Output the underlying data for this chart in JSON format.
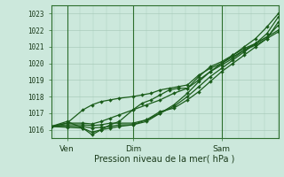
{
  "xlabel": "Pression niveau de la mer( hPa )",
  "bg_color": "#cce8dc",
  "line_color": "#1a5c1a",
  "grid_color": "#aaccbb",
  "ylim": [
    1015.5,
    1023.5
  ],
  "yticks": [
    1016,
    1017,
    1018,
    1019,
    1020,
    1021,
    1022,
    1023
  ],
  "xlim": [
    0,
    1.0
  ],
  "xtick_positions": [
    0.07,
    0.36,
    0.75
  ],
  "xtick_labels": [
    "Ven",
    "Dim",
    "Sam"
  ],
  "vline_positions": [
    0.07,
    0.36,
    0.75
  ],
  "series": [
    [
      0.0,
      1016.2,
      0.07,
      1016.15,
      0.14,
      1016.1,
      0.18,
      1015.85,
      0.22,
      1016.0,
      0.26,
      1016.1,
      0.3,
      1016.2,
      0.36,
      1016.3,
      0.42,
      1016.6,
      0.48,
      1017.0,
      0.54,
      1017.5,
      0.6,
      1018.2,
      0.65,
      1018.9,
      0.7,
      1019.5,
      0.75,
      1020.0,
      0.8,
      1020.5,
      0.85,
      1021.0,
      0.9,
      1021.5,
      0.95,
      1022.2,
      1.0,
      1023.0
    ],
    [
      0.0,
      1016.2,
      0.07,
      1016.2,
      0.14,
      1016.2,
      0.18,
      1016.1,
      0.22,
      1016.15,
      0.26,
      1016.2,
      0.3,
      1016.3,
      0.36,
      1016.3,
      0.42,
      1016.5,
      0.48,
      1017.0,
      0.54,
      1017.4,
      0.6,
      1018.0,
      0.65,
      1018.6,
      0.7,
      1019.2,
      0.75,
      1019.7,
      0.8,
      1020.2,
      0.85,
      1020.7,
      0.9,
      1021.2,
      0.95,
      1021.8,
      1.0,
      1022.8
    ],
    [
      0.0,
      1016.2,
      0.07,
      1016.3,
      0.14,
      1016.3,
      0.18,
      1016.25,
      0.22,
      1016.3,
      0.26,
      1016.4,
      0.3,
      1016.4,
      0.36,
      1016.4,
      0.42,
      1016.6,
      0.48,
      1017.1,
      0.54,
      1017.3,
      0.6,
      1017.8,
      0.65,
      1018.3,
      0.7,
      1018.9,
      0.75,
      1019.5,
      0.8,
      1020.0,
      0.85,
      1020.5,
      0.9,
      1021.0,
      0.95,
      1021.5,
      1.0,
      1022.5
    ],
    [
      0.0,
      1016.2,
      0.07,
      1016.4,
      0.14,
      1016.4,
      0.18,
      1016.35,
      0.22,
      1016.5,
      0.26,
      1016.7,
      0.3,
      1016.9,
      0.36,
      1017.2,
      0.42,
      1017.5,
      0.48,
      1017.8,
      0.54,
      1018.2,
      0.6,
      1018.5,
      0.65,
      1019.0,
      0.7,
      1019.5,
      0.75,
      1019.9,
      0.8,
      1020.3,
      0.85,
      1020.8,
      0.9,
      1021.2,
      0.95,
      1021.6,
      1.0,
      1022.3
    ],
    [
      0.0,
      1016.2,
      0.07,
      1016.5,
      0.14,
      1016.1,
      0.18,
      1015.7,
      0.22,
      1016.0,
      0.26,
      1016.3,
      0.3,
      1016.5,
      0.36,
      1017.2,
      0.4,
      1017.6,
      0.44,
      1017.8,
      0.48,
      1018.1,
      0.52,
      1018.4,
      0.56,
      1018.5,
      0.6,
      1018.5,
      0.65,
      1019.2,
      0.7,
      1019.8,
      0.75,
      1020.1,
      0.8,
      1020.5,
      0.85,
      1020.9,
      0.9,
      1021.2,
      0.95,
      1021.6,
      1.0,
      1022.0
    ],
    [
      0.0,
      1016.2,
      0.07,
      1016.4,
      0.14,
      1017.2,
      0.18,
      1017.5,
      0.22,
      1017.7,
      0.26,
      1017.8,
      0.3,
      1017.9,
      0.36,
      1018.0,
      0.4,
      1018.1,
      0.44,
      1018.2,
      0.48,
      1018.4,
      0.52,
      1018.5,
      0.56,
      1018.6,
      0.6,
      1018.7,
      0.65,
      1019.3,
      0.7,
      1019.7,
      0.75,
      1020.0,
      0.8,
      1020.4,
      0.85,
      1020.8,
      0.9,
      1021.1,
      0.95,
      1021.5,
      1.0,
      1021.9
    ]
  ]
}
